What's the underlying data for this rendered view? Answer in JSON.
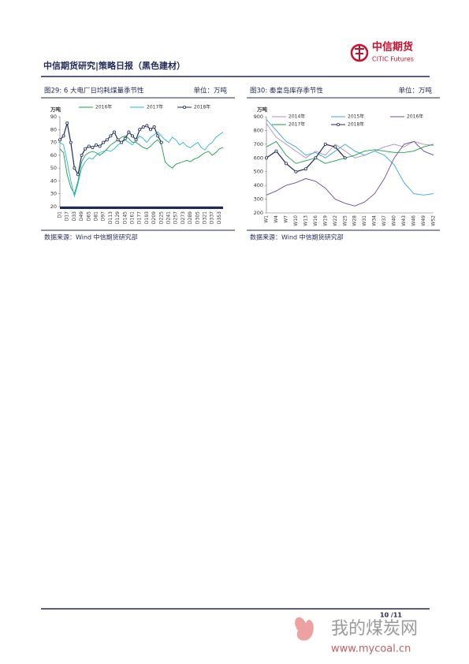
{
  "header": {
    "title": "中信期货研究|策略日报（黑色建材）",
    "logo_cn": "中信期货",
    "logo_en": "CITIC Futures"
  },
  "chart_data": [
    {
      "type": "line",
      "title": "图29: 6 大电厂日均耗煤量季节性",
      "unit_label": "单位：万吨",
      "y_axis_label": "万吨",
      "source": "数据来源：Wind  中信期货研究部",
      "categories": [
        "D1",
        null,
        "D17",
        null,
        "D33",
        null,
        "D49",
        null,
        "D65",
        null,
        "D81",
        null,
        "D97",
        null,
        "D113",
        null,
        "D129",
        null,
        "D145",
        null,
        "D161",
        null,
        "D177",
        null,
        "D193",
        null,
        "D209",
        null,
        "D225",
        null,
        "D241",
        null,
        "D257",
        null,
        "D273",
        null,
        "D289",
        null,
        "D305",
        null,
        "D321",
        null,
        "D337",
        null,
        "D353",
        null
      ],
      "ylim": [
        20,
        90
      ],
      "yticks": [
        20,
        30,
        40,
        50,
        60,
        70,
        80,
        90
      ],
      "series": [
        {
          "name": "2016年",
          "color": "#1a9e4a",
          "values": [
            65,
            62,
            45,
            35,
            30,
            40,
            55,
            60,
            62,
            63,
            62,
            60,
            62,
            65,
            68,
            70,
            72,
            74,
            75,
            73,
            70,
            70,
            68,
            66,
            65,
            67,
            70,
            72,
            68,
            55,
            52,
            50,
            53,
            54,
            55,
            56,
            55,
            57,
            58,
            60,
            62,
            63,
            60,
            62,
            65,
            66
          ]
        },
        {
          "name": "2017年",
          "color": "#22b8cf",
          "values": [
            70,
            68,
            55,
            40,
            28,
            38,
            50,
            55,
            58,
            57,
            60,
            62,
            63,
            64,
            63,
            65,
            68,
            70,
            72,
            70,
            68,
            72,
            75,
            73,
            70,
            74,
            76,
            78,
            75,
            72,
            70,
            74,
            72,
            68,
            70,
            67,
            66,
            68,
            70,
            66,
            64,
            68,
            70,
            74,
            76,
            78
          ]
        },
        {
          "name": "2018年",
          "color": "#1f2a5a",
          "markers": true,
          "values": [
            72,
            75,
            85,
            70,
            50,
            45,
            60,
            65,
            67,
            66,
            68,
            67,
            70,
            72,
            75,
            78,
            72,
            70,
            73,
            78,
            75,
            72,
            80,
            82,
            83,
            80,
            82,
            75,
            70,
            null,
            null,
            null,
            null,
            null,
            null,
            null,
            null,
            null,
            null,
            null,
            null,
            null,
            null,
            null,
            null,
            null
          ]
        }
      ]
    },
    {
      "type": "line",
      "title": "图30: 秦皇岛库存季节性",
      "unit_label": "单位：万吨",
      "y_axis_label": "万吨",
      "source": "数据来源：Wind  中信期货研究部",
      "categories": [
        "W1",
        "W4",
        "W7",
        "W10",
        "W13",
        "W16",
        "W19",
        "W22",
        "W25",
        "W28",
        "W31",
        "W34",
        "W37",
        "W40",
        "W43",
        "W46",
        "W49",
        "W52"
      ],
      "ylim": [
        200,
        900
      ],
      "yticks": [
        200,
        300,
        400,
        500,
        600,
        700,
        800,
        900
      ],
      "series": [
        {
          "name": "2014年",
          "color": "#b38fb8",
          "values": [
            850,
            750,
            700,
            650,
            600,
            650,
            620,
            700,
            650,
            600,
            620,
            650,
            680,
            700,
            680,
            720,
            700,
            690
          ]
        },
        {
          "name": "2015年",
          "color": "#3aa6dd",
          "values": [
            880,
            800,
            720,
            680,
            620,
            640,
            600,
            650,
            700,
            650,
            620,
            650,
            620,
            550,
            420,
            340,
            330,
            340
          ]
        },
        {
          "name": "2016年",
          "color": "#6b4c9a",
          "values": [
            330,
            360,
            400,
            420,
            450,
            430,
            380,
            300,
            270,
            250,
            280,
            340,
            450,
            600,
            700,
            720,
            650,
            620
          ]
        },
        {
          "name": "2017年",
          "color": "#1a9e4a",
          "values": [
            680,
            720,
            620,
            560,
            580,
            600,
            560,
            580,
            600,
            620,
            650,
            660,
            650,
            640,
            640,
            650,
            680,
            700
          ]
        },
        {
          "name": "2018年",
          "color": "#1f2a5a",
          "markers": true,
          "values": [
            600,
            650,
            560,
            500,
            520,
            600,
            700,
            680,
            600,
            null,
            null,
            null,
            null,
            null,
            null,
            null,
            null,
            null
          ]
        }
      ]
    }
  ],
  "footer": {
    "page": "10 /11"
  },
  "watermark": {
    "name": "我的煤炭网",
    "url": "www.mycoal.cn"
  }
}
